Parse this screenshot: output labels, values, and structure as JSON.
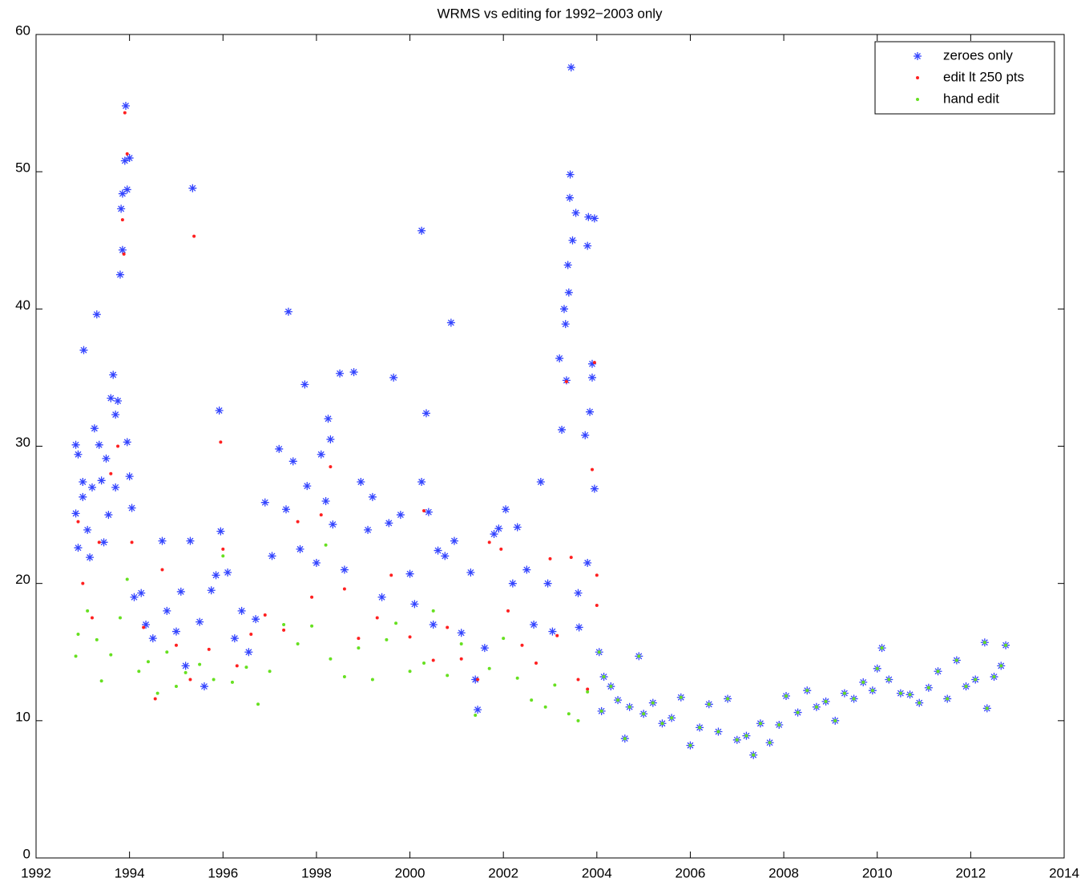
{
  "chart_data": {
    "type": "scatter",
    "title": "WRMS vs editing for 1992−2003 only",
    "xlim": [
      1992,
      2014
    ],
    "xticks": [
      1992,
      1994,
      1996,
      1998,
      2000,
      2002,
      2004,
      2006,
      2008,
      2010,
      2012,
      2014
    ],
    "ylim": [
      0,
      60
    ],
    "yticks": [
      0,
      10,
      20,
      30,
      40,
      50,
      60
    ],
    "legend": "upper right",
    "series": [
      {
        "name": "zeroes only",
        "color": "#3344ff",
        "marker": "asterisk",
        "x": [
          1992.85,
          1992.9,
          1992.85,
          1992.9,
          1993.0,
          1993.0,
          1993.02,
          1993.1,
          1993.15,
          1993.2,
          1993.25,
          1993.3,
          1993.35,
          1993.4,
          1993.45,
          1993.5,
          1993.55,
          1993.6,
          1993.65,
          1993.7,
          1993.7,
          1993.75,
          1993.8,
          1993.82,
          1993.85,
          1993.85,
          1993.9,
          1993.92,
          1993.95,
          1994.0,
          1993.95,
          1994.0,
          1994.05,
          1994.1,
          1994.25,
          1994.35,
          1994.5,
          1994.7,
          1994.8,
          1995.0,
          1995.1,
          1995.2,
          1995.3,
          1995.35,
          1995.5,
          1995.6,
          1995.75,
          1995.85,
          1995.92,
          1995.95,
          1996.1,
          1996.25,
          1996.4,
          1996.55,
          1996.7,
          1996.9,
          1997.05,
          1997.2,
          1997.35,
          1997.4,
          1997.5,
          1997.65,
          1997.75,
          1997.8,
          1998.0,
          1998.1,
          1998.2,
          1998.25,
          1998.3,
          1998.35,
          1998.5,
          1998.6,
          1998.8,
          1998.95,
          1999.1,
          1999.2,
          1999.4,
          1999.55,
          1999.65,
          1999.8,
          2000.0,
          2000.1,
          2000.25,
          2000.25,
          2000.35,
          2000.4,
          2000.5,
          2000.6,
          2000.75,
          2000.88,
          2000.95,
          2001.1,
          2001.3,
          2001.4,
          2001.45,
          2001.6,
          2001.8,
          2001.9,
          2002.05,
          2002.2,
          2002.3,
          2002.5,
          2002.65,
          2002.8,
          2002.95,
          2003.05,
          2003.2,
          2003.25,
          2003.3,
          2003.33,
          2003.38,
          2003.42,
          2003.43,
          2003.45,
          2003.48,
          2003.4,
          2003.35,
          2003.55,
          2003.6,
          2003.62,
          2003.75,
          2003.8,
          2003.82,
          2003.95,
          2003.9,
          2003.85,
          2003.95,
          2003.8,
          2003.9,
          2004.05,
          2004.1,
          2004.15,
          2004.3,
          2004.45,
          2004.6,
          2004.7,
          2004.9,
          2005.0,
          2005.2,
          2005.4,
          2005.6,
          2005.8,
          2006.0,
          2006.2,
          2006.4,
          2006.6,
          2006.8,
          2007.0,
          2007.2,
          2007.35,
          2007.5,
          2007.7,
          2007.9,
          2008.05,
          2008.3,
          2008.5,
          2008.7,
          2008.9,
          2009.1,
          2009.3,
          2009.5,
          2009.7,
          2009.9,
          2010.0,
          2010.1,
          2010.25,
          2010.5,
          2010.7,
          2010.9,
          2011.1,
          2011.3,
          2011.5,
          2011.7,
          2011.9,
          2012.1,
          2012.3,
          2012.35,
          2012.5,
          2012.65,
          2012.75
        ],
        "y": [
          30.1,
          29.4,
          25.1,
          22.6,
          26.3,
          27.4,
          37.0,
          23.9,
          21.9,
          27.0,
          31.3,
          39.6,
          30.1,
          27.5,
          23.0,
          29.1,
          25.0,
          33.5,
          35.2,
          32.3,
          27.0,
          33.3,
          42.5,
          47.3,
          48.4,
          44.3,
          50.8,
          54.8,
          48.7,
          51.0,
          30.3,
          27.8,
          25.5,
          19.0,
          19.3,
          17.0,
          16.0,
          23.1,
          18.0,
          16.5,
          19.4,
          14.0,
          23.1,
          48.8,
          17.2,
          12.5,
          19.5,
          20.6,
          32.6,
          23.8,
          20.8,
          16.0,
          18.0,
          15.0,
          17.4,
          25.9,
          22.0,
          29.8,
          25.4,
          39.8,
          28.9,
          22.5,
          34.5,
          27.1,
          21.5,
          29.4,
          26.0,
          32.0,
          30.5,
          24.3,
          35.3,
          21.0,
          35.4,
          27.4,
          23.9,
          26.3,
          19.0,
          24.4,
          35.0,
          25.0,
          20.7,
          18.5,
          45.7,
          27.4,
          32.4,
          25.2,
          17.0,
          22.4,
          22.0,
          39.0,
          23.1,
          16.4,
          20.8,
          13.0,
          10.8,
          15.3,
          23.6,
          24.0,
          25.4,
          20.0,
          24.1,
          21.0,
          17.0,
          27.4,
          20.0,
          16.5,
          36.4,
          31.2,
          40.0,
          38.9,
          43.2,
          48.1,
          49.8,
          57.6,
          45.0,
          41.2,
          34.8,
          47.0,
          19.3,
          16.8,
          30.8,
          44.6,
          46.7,
          46.6,
          36.0,
          32.5,
          26.9,
          21.5,
          35.0,
          15.0,
          10.7,
          13.2,
          12.5,
          11.5,
          8.7,
          11.0,
          14.7,
          10.5,
          11.3,
          9.8,
          10.2,
          11.7,
          8.2,
          9.5,
          11.2,
          9.2,
          11.6,
          8.6,
          8.9,
          7.5,
          9.8,
          8.4,
          9.7,
          11.8,
          10.6,
          12.2,
          11.0,
          11.4,
          10.0,
          12.0,
          11.6,
          12.8,
          12.2,
          13.8,
          15.3,
          13.0,
          12.0,
          11.9,
          11.3,
          12.4,
          13.6,
          11.6,
          14.4,
          12.5,
          13.0,
          15.7,
          10.9,
          13.2,
          14.0,
          15.5
        ]
      },
      {
        "name": "edit lt 250 pts",
        "color": "#ff2020",
        "marker": "dot",
        "x": [
          1992.9,
          1993.0,
          1993.2,
          1993.35,
          1993.6,
          1993.75,
          1993.85,
          1993.9,
          1993.95,
          1993.88,
          1994.05,
          1994.3,
          1994.55,
          1994.7,
          1995.0,
          1995.3,
          1995.38,
          1995.7,
          1995.95,
          1996.0,
          1996.3,
          1996.6,
          1996.9,
          1997.3,
          1997.6,
          1997.9,
          1998.1,
          1998.3,
          1998.6,
          1998.9,
          1999.3,
          1999.6,
          2000.0,
          2000.3,
          2000.5,
          2000.8,
          2001.1,
          2001.45,
          2001.7,
          2001.95,
          2002.1,
          2002.4,
          2002.7,
          2003.0,
          2003.15,
          2003.35,
          2003.45,
          2003.6,
          2003.8,
          2003.9,
          2003.95,
          2004.0,
          2004.0
        ],
        "y": [
          24.5,
          20.0,
          17.5,
          23.0,
          28.0,
          30.0,
          46.5,
          54.3,
          51.3,
          44.0,
          23.0,
          16.8,
          11.6,
          21.0,
          15.5,
          13.0,
          45.3,
          15.2,
          30.3,
          22.5,
          14.0,
          16.3,
          17.7,
          16.6,
          24.5,
          19.0,
          25.0,
          28.5,
          19.6,
          16.0,
          17.5,
          20.6,
          16.1,
          25.3,
          14.4,
          16.8,
          14.5,
          13.0,
          23.0,
          22.5,
          18.0,
          15.5,
          14.2,
          21.8,
          16.2,
          34.7,
          21.9,
          13.0,
          12.3,
          28.3,
          36.1,
          20.6,
          18.4
        ]
      },
      {
        "name": "hand edit",
        "color": "#66e020",
        "marker": "dot",
        "x": [
          1992.85,
          1992.9,
          1993.1,
          1993.3,
          1993.4,
          1993.6,
          1993.8,
          1993.95,
          1994.2,
          1994.4,
          1994.6,
          1994.8,
          1995.0,
          1995.2,
          1995.5,
          1995.8,
          1996.0,
          1996.2,
          1996.5,
          1996.75,
          1997.0,
          1997.3,
          1997.6,
          1997.9,
          1998.2,
          1998.3,
          1998.6,
          1998.9,
          1999.2,
          1999.5,
          1999.7,
          2000.0,
          2000.3,
          2000.5,
          2000.8,
          2001.1,
          2001.4,
          2001.7,
          2002.0,
          2002.3,
          2002.6,
          2002.9,
          2003.1,
          2003.4,
          2003.6,
          2003.8,
          2004.05,
          2004.1,
          2004.15,
          2004.3,
          2004.45,
          2004.6,
          2004.7,
          2004.9,
          2005.0,
          2005.2,
          2005.4,
          2005.6,
          2005.8,
          2006.0,
          2006.2,
          2006.4,
          2006.6,
          2006.8,
          2007.0,
          2007.2,
          2007.35,
          2007.5,
          2007.7,
          2007.9,
          2008.05,
          2008.3,
          2008.5,
          2008.7,
          2008.9,
          2009.1,
          2009.3,
          2009.5,
          2009.7,
          2009.9,
          2010.0,
          2010.1,
          2010.25,
          2010.5,
          2010.7,
          2010.9,
          2011.1,
          2011.3,
          2011.5,
          2011.7,
          2011.9,
          2012.1,
          2012.3,
          2012.35,
          2012.5,
          2012.65,
          2012.75
        ],
        "y": [
          14.7,
          16.3,
          18.0,
          15.9,
          12.9,
          14.8,
          17.5,
          20.3,
          13.6,
          14.3,
          12.0,
          15.0,
          12.5,
          13.5,
          14.1,
          13.0,
          22.0,
          12.8,
          13.9,
          11.2,
          13.6,
          17.0,
          15.6,
          16.9,
          22.8,
          14.5,
          13.2,
          15.3,
          13.0,
          15.9,
          17.1,
          13.6,
          14.2,
          18.0,
          13.3,
          15.6,
          10.4,
          13.8,
          16.0,
          13.1,
          11.5,
          11.0,
          12.6,
          10.5,
          10.0,
          12.1,
          15.0,
          10.7,
          13.2,
          12.5,
          11.5,
          8.7,
          11.0,
          14.7,
          10.5,
          11.3,
          9.8,
          10.2,
          11.7,
          8.2,
          9.5,
          11.2,
          9.2,
          11.6,
          8.6,
          8.9,
          7.5,
          9.8,
          8.4,
          9.7,
          11.8,
          10.6,
          12.2,
          11.0,
          11.4,
          10.0,
          12.0,
          11.6,
          12.8,
          12.2,
          13.8,
          15.3,
          13.0,
          12.0,
          11.9,
          11.3,
          12.4,
          13.6,
          11.6,
          14.4,
          12.5,
          13.0,
          15.7,
          10.9,
          13.2,
          14.0,
          15.5
        ]
      }
    ]
  }
}
